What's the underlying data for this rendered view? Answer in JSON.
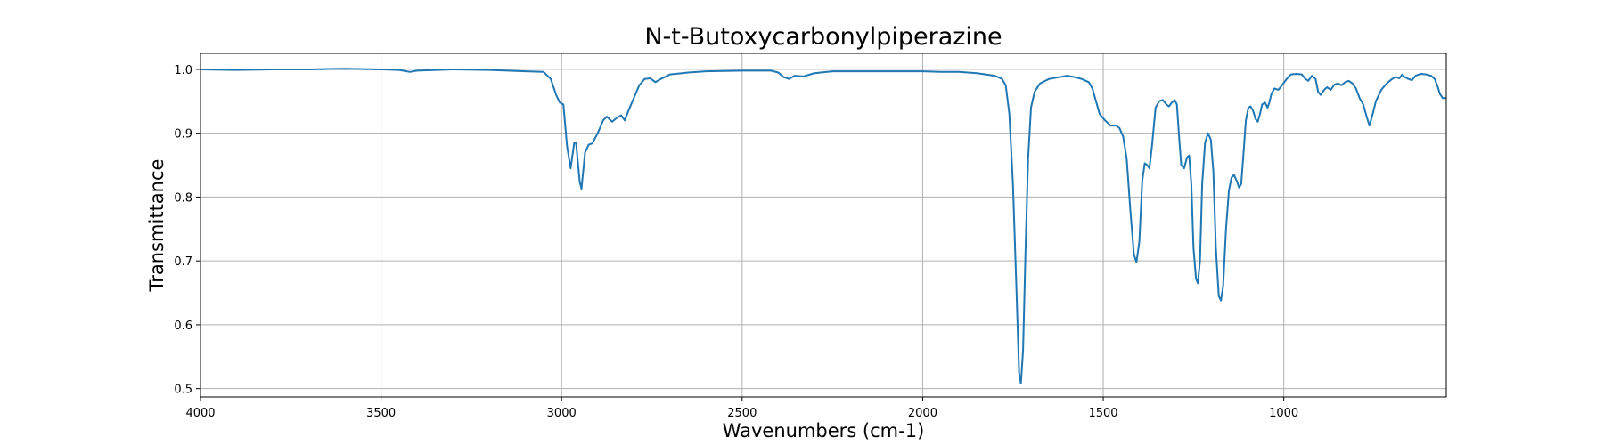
{
  "chart_data": {
    "type": "line",
    "title": "N-t-Butoxycarbonylpiperazine",
    "xlabel": "Wavenumbers (cm-1)",
    "ylabel": "Transmittance",
    "xlim": [
      4000,
      550
    ],
    "ylim": [
      0.487,
      1.025
    ],
    "x_inverted": true,
    "grid": true,
    "x_ticks": [
      4000,
      3500,
      3000,
      2500,
      2000,
      1500,
      1000
    ],
    "y_ticks": [
      0.5,
      0.6,
      0.7,
      0.8,
      0.9,
      1.0
    ],
    "x_tick_labels": [
      "4000",
      "3500",
      "3000",
      "2500",
      "2000",
      "1500",
      "1000"
    ],
    "y_tick_labels": [
      "0.5",
      "0.6",
      "0.7",
      "0.8",
      "0.9",
      "1.0"
    ],
    "series": [
      {
        "color": "#1f77b4",
        "points": [
          [
            4000,
            1.0
          ],
          [
            3900,
            0.999
          ],
          [
            3800,
            1.0
          ],
          [
            3700,
            1.0
          ],
          [
            3600,
            1.001
          ],
          [
            3500,
            1.0
          ],
          [
            3450,
            0.999
          ],
          [
            3420,
            0.996
          ],
          [
            3400,
            0.998
          ],
          [
            3300,
            1.0
          ],
          [
            3200,
            0.999
          ],
          [
            3100,
            0.997
          ],
          [
            3050,
            0.996
          ],
          [
            3030,
            0.985
          ],
          [
            3015,
            0.96
          ],
          [
            3005,
            0.948
          ],
          [
            2995,
            0.945
          ],
          [
            2985,
            0.88
          ],
          [
            2975,
            0.845
          ],
          [
            2965,
            0.885
          ],
          [
            2960,
            0.885
          ],
          [
            2950,
            0.825
          ],
          [
            2945,
            0.813
          ],
          [
            2935,
            0.87
          ],
          [
            2925,
            0.882
          ],
          [
            2915,
            0.884
          ],
          [
            2900,
            0.9
          ],
          [
            2885,
            0.92
          ],
          [
            2875,
            0.926
          ],
          [
            2860,
            0.918
          ],
          [
            2845,
            0.925
          ],
          [
            2835,
            0.928
          ],
          [
            2825,
            0.92
          ],
          [
            2815,
            0.935
          ],
          [
            2800,
            0.955
          ],
          [
            2785,
            0.975
          ],
          [
            2770,
            0.985
          ],
          [
            2755,
            0.986
          ],
          [
            2740,
            0.98
          ],
          [
            2725,
            0.985
          ],
          [
            2700,
            0.992
          ],
          [
            2650,
            0.995
          ],
          [
            2600,
            0.997
          ],
          [
            2500,
            0.998
          ],
          [
            2420,
            0.998
          ],
          [
            2400,
            0.995
          ],
          [
            2385,
            0.988
          ],
          [
            2370,
            0.985
          ],
          [
            2355,
            0.99
          ],
          [
            2330,
            0.989
          ],
          [
            2300,
            0.994
          ],
          [
            2250,
            0.997
          ],
          [
            2200,
            0.997
          ],
          [
            2100,
            0.997
          ],
          [
            2000,
            0.997
          ],
          [
            1950,
            0.996
          ],
          [
            1900,
            0.996
          ],
          [
            1850,
            0.994
          ],
          [
            1800,
            0.99
          ],
          [
            1780,
            0.985
          ],
          [
            1770,
            0.975
          ],
          [
            1760,
            0.93
          ],
          [
            1750,
            0.82
          ],
          [
            1740,
            0.65
          ],
          [
            1733,
            0.525
          ],
          [
            1728,
            0.508
          ],
          [
            1722,
            0.56
          ],
          [
            1715,
            0.72
          ],
          [
            1708,
            0.86
          ],
          [
            1700,
            0.94
          ],
          [
            1690,
            0.965
          ],
          [
            1675,
            0.978
          ],
          [
            1650,
            0.985
          ],
          [
            1620,
            0.988
          ],
          [
            1600,
            0.99
          ],
          [
            1580,
            0.988
          ],
          [
            1560,
            0.985
          ],
          [
            1540,
            0.98
          ],
          [
            1530,
            0.97
          ],
          [
            1520,
            0.95
          ],
          [
            1510,
            0.93
          ],
          [
            1495,
            0.92
          ],
          [
            1480,
            0.912
          ],
          [
            1465,
            0.912
          ],
          [
            1455,
            0.908
          ],
          [
            1445,
            0.895
          ],
          [
            1435,
            0.86
          ],
          [
            1425,
            0.78
          ],
          [
            1415,
            0.71
          ],
          [
            1408,
            0.698
          ],
          [
            1400,
            0.73
          ],
          [
            1392,
            0.825
          ],
          [
            1385,
            0.853
          ],
          [
            1378,
            0.85
          ],
          [
            1372,
            0.845
          ],
          [
            1365,
            0.88
          ],
          [
            1355,
            0.94
          ],
          [
            1345,
            0.95
          ],
          [
            1335,
            0.952
          ],
          [
            1325,
            0.945
          ],
          [
            1318,
            0.942
          ],
          [
            1310,
            0.948
          ],
          [
            1302,
            0.952
          ],
          [
            1296,
            0.945
          ],
          [
            1290,
            0.895
          ],
          [
            1284,
            0.85
          ],
          [
            1276,
            0.845
          ],
          [
            1268,
            0.862
          ],
          [
            1262,
            0.865
          ],
          [
            1256,
            0.82
          ],
          [
            1250,
            0.72
          ],
          [
            1243,
            0.672
          ],
          [
            1238,
            0.665
          ],
          [
            1232,
            0.7
          ],
          [
            1226,
            0.82
          ],
          [
            1218,
            0.885
          ],
          [
            1210,
            0.9
          ],
          [
            1202,
            0.89
          ],
          [
            1195,
            0.84
          ],
          [
            1188,
            0.72
          ],
          [
            1180,
            0.645
          ],
          [
            1174,
            0.638
          ],
          [
            1168,
            0.66
          ],
          [
            1160,
            0.75
          ],
          [
            1152,
            0.81
          ],
          [
            1145,
            0.83
          ],
          [
            1138,
            0.835
          ],
          [
            1130,
            0.825
          ],
          [
            1124,
            0.815
          ],
          [
            1118,
            0.82
          ],
          [
            1112,
            0.865
          ],
          [
            1105,
            0.92
          ],
          [
            1098,
            0.94
          ],
          [
            1092,
            0.942
          ],
          [
            1085,
            0.935
          ],
          [
            1078,
            0.922
          ],
          [
            1072,
            0.918
          ],
          [
            1066,
            0.93
          ],
          [
            1060,
            0.945
          ],
          [
            1052,
            0.948
          ],
          [
            1045,
            0.94
          ],
          [
            1040,
            0.948
          ],
          [
            1034,
            0.962
          ],
          [
            1026,
            0.97
          ],
          [
            1015,
            0.968
          ],
          [
            1005,
            0.975
          ],
          [
            992,
            0.985
          ],
          [
            980,
            0.992
          ],
          [
            965,
            0.993
          ],
          [
            950,
            0.992
          ],
          [
            940,
            0.985
          ],
          [
            932,
            0.982
          ],
          [
            922,
            0.99
          ],
          [
            912,
            0.985
          ],
          [
            905,
            0.965
          ],
          [
            898,
            0.96
          ],
          [
            888,
            0.968
          ],
          [
            880,
            0.972
          ],
          [
            870,
            0.968
          ],
          [
            860,
            0.976
          ],
          [
            850,
            0.978
          ],
          [
            840,
            0.975
          ],
          [
            830,
            0.98
          ],
          [
            820,
            0.982
          ],
          [
            810,
            0.978
          ],
          [
            800,
            0.97
          ],
          [
            790,
            0.955
          ],
          [
            780,
            0.945
          ],
          [
            770,
            0.925
          ],
          [
            763,
            0.912
          ],
          [
            756,
            0.925
          ],
          [
            745,
            0.95
          ],
          [
            730,
            0.968
          ],
          [
            715,
            0.978
          ],
          [
            700,
            0.985
          ],
          [
            690,
            0.988
          ],
          [
            680,
            0.986
          ],
          [
            672,
            0.992
          ],
          [
            665,
            0.988
          ],
          [
            655,
            0.985
          ],
          [
            645,
            0.983
          ],
          [
            635,
            0.99
          ],
          [
            620,
            0.993
          ],
          [
            605,
            0.992
          ],
          [
            592,
            0.99
          ],
          [
            582,
            0.985
          ],
          [
            575,
            0.975
          ],
          [
            568,
            0.962
          ],
          [
            560,
            0.955
          ],
          [
            550,
            0.955
          ]
        ]
      }
    ]
  }
}
